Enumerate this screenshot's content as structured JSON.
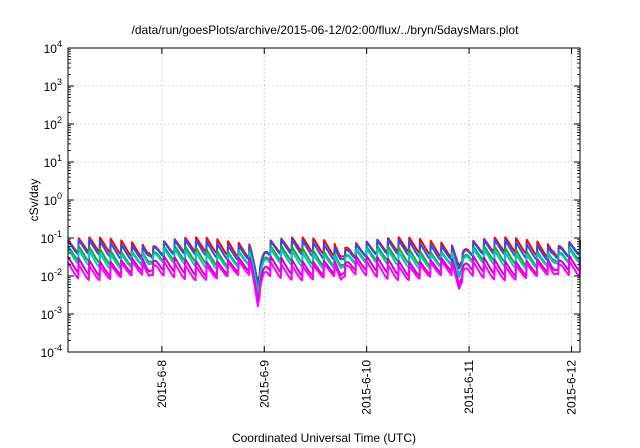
{
  "chart_data": {
    "type": "line",
    "title": "/data/run/goesPlots/archive/2015-06-12/02:00/flux/../bryn/5daysMars.plot",
    "xlabel": "Coordinated Universal Time (UTC)",
    "ylabel": "cSv/day",
    "yscale": "log",
    "ylim": [
      0.0001,
      10000
    ],
    "xlim": [
      "2015-06-07T02:00",
      "2015-06-12T02:00"
    ],
    "grid": true,
    "y_ticks": [
      {
        "base": "10",
        "exp": "-4"
      },
      {
        "base": "10",
        "exp": "-3"
      },
      {
        "base": "10",
        "exp": "-2"
      },
      {
        "base": "10",
        "exp": "-1"
      },
      {
        "base": "10",
        "exp": "0"
      },
      {
        "base": "10",
        "exp": "1"
      },
      {
        "base": "10",
        "exp": "2"
      },
      {
        "base": "10",
        "exp": "3"
      },
      {
        "base": "10",
        "exp": "4"
      }
    ],
    "x_ticks": [
      "2015-6-8",
      "2015-6-9",
      "2015-6-10",
      "2015-6-11",
      "2015-6-12"
    ],
    "pattern_note": "Sawtooth series with ~48 cycles over 5 days",
    "series": [
      {
        "color": "#ff0000",
        "level": 0.068
      },
      {
        "color": "#2050ff",
        "level": 0.058
      },
      {
        "color": "#2aa02a",
        "level": 0.04
      },
      {
        "color": "#00c8c8",
        "level": 0.034
      },
      {
        "color": "#cc00cc",
        "level": 0.022
      },
      {
        "color": "#ff00ff",
        "level": 0.017
      }
    ],
    "dips": [
      {
        "date": "2015-06-08T22:30",
        "min": 0.0016
      },
      {
        "date": "2015-06-10T21:40",
        "min": 0.0045
      },
      {
        "date": "2015-06-07T21:00",
        "min": 0.01
      },
      {
        "date": "2015-06-09T18:00",
        "min": 0.008
      },
      {
        "date": "2015-06-11T20:00",
        "min": 0.011
      }
    ]
  }
}
